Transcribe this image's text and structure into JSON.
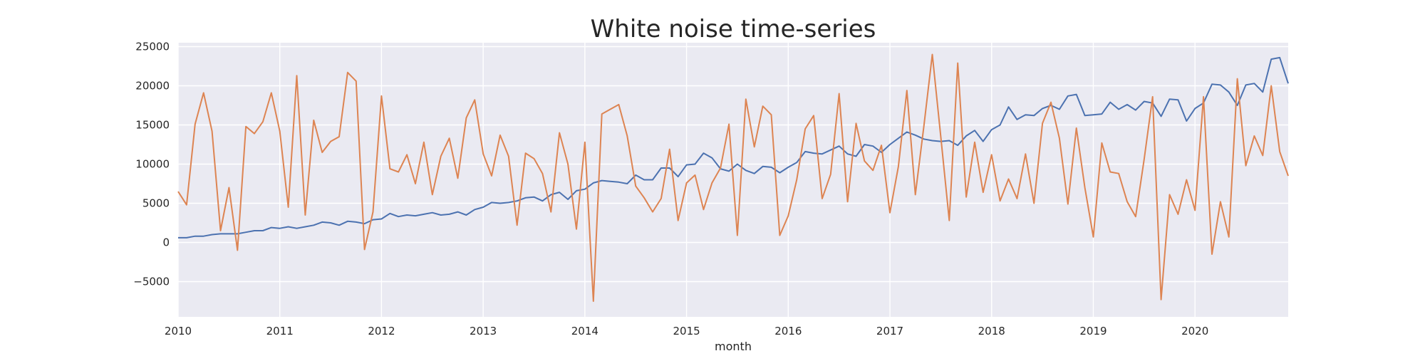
{
  "chart_data": {
    "type": "line",
    "title": "White noise time-series",
    "xlabel": "month",
    "ylabel": "",
    "x_start": "2010-01",
    "x_end": "2020-12",
    "x_frequency": "monthly",
    "xlim": [
      "2010-01",
      "2020-12"
    ],
    "ylim": [
      -9500,
      25500
    ],
    "x_ticks": [
      "2010",
      "2011",
      "2012",
      "2013",
      "2014",
      "2015",
      "2016",
      "2017",
      "2018",
      "2019",
      "2020"
    ],
    "y_ticks": [
      -5000,
      0,
      5000,
      10000,
      15000,
      20000,
      25000
    ],
    "y_tick_labels": [
      "−5000",
      "0",
      "5000",
      "10000",
      "15000",
      "20000",
      "25000"
    ],
    "grid": true,
    "legend": "none",
    "colors": {
      "background": "#eaeaf2",
      "grid": "#ffffff"
    },
    "series": [
      {
        "color": "#4c72b0",
        "values": [
          600,
          600,
          800,
          800,
          1000,
          1100,
          1100,
          1100,
          1300,
          1500,
          1500,
          1900,
          1800,
          2000,
          1800,
          2000,
          2200,
          2600,
          2500,
          2200,
          2700,
          2600,
          2400,
          2900,
          3000,
          3700,
          3300,
          3500,
          3400,
          3600,
          3800,
          3500,
          3600,
          3900,
          3500,
          4200,
          4500,
          5100,
          5000,
          5100,
          5300,
          5700,
          5800,
          5300,
          6100,
          6400,
          5500,
          6600,
          6800,
          7600,
          7900,
          7800,
          7700,
          7500,
          8600,
          8000,
          8000,
          9500,
          9500,
          8400,
          9900,
          10000,
          11400,
          10800,
          9400,
          9100,
          10000,
          9200,
          8800,
          9700,
          9600,
          8900,
          9600,
          10200,
          11600,
          11400,
          11300,
          11800,
          12300,
          11300,
          11000,
          12500,
          12300,
          11500,
          12500,
          13300,
          14100,
          13700,
          13200,
          13000,
          12900,
          13000,
          12400,
          13600,
          14300,
          12900,
          14400,
          15000,
          17300,
          15700,
          16300,
          16200,
          17100,
          17500,
          17000,
          18700,
          18900,
          16200,
          16300,
          16400,
          17900,
          17000,
          17600,
          16900,
          18000,
          17800,
          16100,
          18300,
          18200,
          15500,
          17100,
          17800,
          20200,
          20100,
          19200,
          17500,
          20100,
          20300,
          19200,
          23400,
          23600,
          20300
        ]
      },
      {
        "color": "#dd8452",
        "values": [
          6500,
          4800,
          15100,
          19100,
          14200,
          1500,
          7000,
          -1000,
          14800,
          13900,
          15400,
          19100,
          14200,
          4500,
          21300,
          3500,
          15600,
          11500,
          12900,
          13500,
          21700,
          20600,
          -900,
          3900,
          18700,
          9400,
          9000,
          11200,
          7500,
          12800,
          6100,
          11000,
          13300,
          8200,
          15900,
          18200,
          11300,
          8500,
          13700,
          11000,
          2200,
          11400,
          10700,
          8800,
          3900,
          14000,
          10000,
          1700,
          12800,
          -7500,
          16400,
          17000,
          17600,
          13600,
          7200,
          5700,
          3900,
          5600,
          11900,
          2800,
          7600,
          8600,
          4200,
          7600,
          9500,
          15100,
          900,
          18300,
          12200,
          17400,
          16300,
          900,
          3400,
          8000,
          14500,
          16200,
          5600,
          8700,
          19000,
          5200,
          15200,
          10400,
          9200,
          12400,
          3800,
          9700,
          19400,
          6100,
          14800,
          24000,
          13500,
          2800,
          22900,
          5800,
          12800,
          6400,
          11200,
          5300,
          8100,
          5600,
          11300,
          5000,
          15200,
          17900,
          13300,
          4900,
          14600,
          7000,
          700,
          12700,
          9000,
          8800,
          5200,
          3300,
          10600,
          18600,
          -7300,
          6100,
          3600,
          8000,
          4100,
          18600,
          -1500,
          5200,
          700,
          20900,
          9800,
          13600,
          11100,
          20000,
          11600,
          8500
        ]
      }
    ]
  }
}
